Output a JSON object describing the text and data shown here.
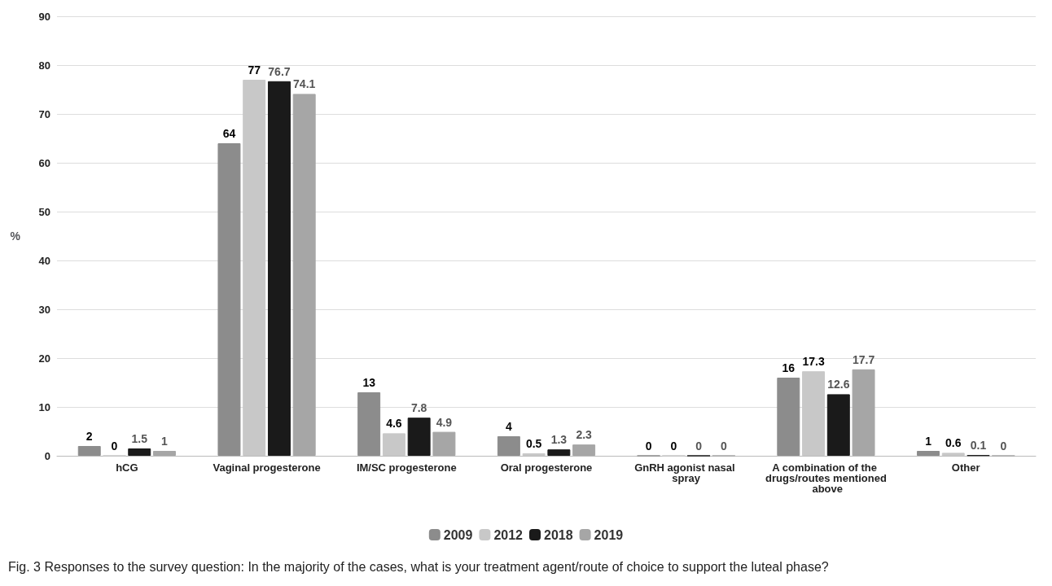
{
  "chart_data": {
    "type": "bar",
    "ylabel": "%",
    "categories": [
      "hCG",
      "Vaginal progesterone",
      "IM/SC progesterone",
      "Oral progesterone",
      "GnRH agonist nasal spray",
      "A combination of the drugs/routes mentioned above",
      "Other"
    ],
    "series": [
      {
        "name": "2009",
        "color": "#8c8c8c",
        "values": [
          2,
          64,
          13,
          4,
          0,
          16,
          1
        ]
      },
      {
        "name": "2012",
        "color": "#c8c8c8",
        "values": [
          0,
          77,
          4.6,
          0.5,
          0,
          17.3,
          0.6
        ]
      },
      {
        "name": "2018",
        "color": "#1a1a1a",
        "values": [
          1.5,
          76.7,
          7.8,
          1.3,
          0,
          12.6,
          0.1
        ]
      },
      {
        "name": "2019",
        "color": "#a6a6a6",
        "values": [
          1,
          74.1,
          4.9,
          2.3,
          0,
          17.7,
          0
        ]
      }
    ],
    "ylim": [
      0,
      90
    ],
    "yticks": [
      0,
      10,
      20,
      30,
      40,
      50,
      60,
      70,
      80,
      90
    ],
    "grid": "y",
    "legend": "bottom",
    "data_labels": true,
    "annotations": [
      "Fig. 3 Responses to the survey question: In the majority of the cases, what is your treatment agent/route of choice to support the luteal phase?"
    ]
  }
}
